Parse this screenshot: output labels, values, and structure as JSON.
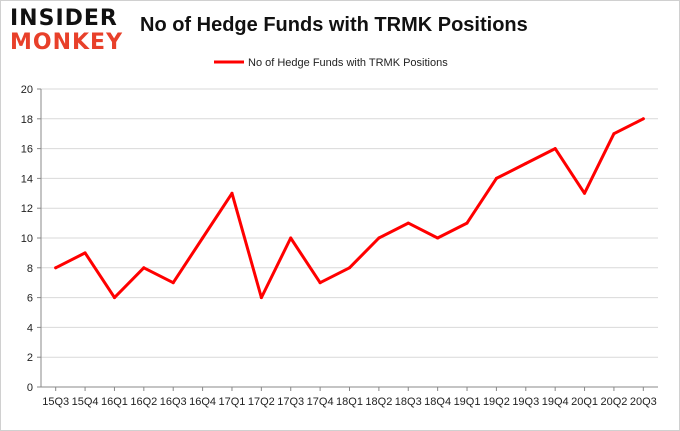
{
  "logo": {
    "line1": "INSIDER",
    "line2": "MONKEY"
  },
  "colors": {
    "series": "#ff0000",
    "grid": "#d9d9d9",
    "logo_accent": "#e8402a"
  },
  "chart_data": {
    "type": "line",
    "title": "No of Hedge Funds with TRMK Positions",
    "xlabel": "",
    "ylabel": "",
    "ylim": [
      0,
      20
    ],
    "yticks": [
      0,
      2,
      4,
      6,
      8,
      10,
      12,
      14,
      16,
      18,
      20
    ],
    "grid": true,
    "legend_position": "top-center",
    "categories": [
      "15Q3",
      "15Q4",
      "16Q1",
      "16Q2",
      "16Q3",
      "16Q4",
      "17Q1",
      "17Q2",
      "17Q3",
      "17Q4",
      "18Q1",
      "18Q2",
      "18Q3",
      "18Q4",
      "19Q1",
      "19Q2",
      "19Q3",
      "19Q4",
      "20Q1",
      "20Q2",
      "20Q3"
    ],
    "series": [
      {
        "name": "No of Hedge Funds with TRMK Positions",
        "values": [
          8,
          9,
          6,
          8,
          7,
          10,
          13,
          6,
          10,
          7,
          8,
          10,
          11,
          10,
          11,
          14,
          15,
          16,
          13,
          17,
          18
        ]
      }
    ]
  }
}
